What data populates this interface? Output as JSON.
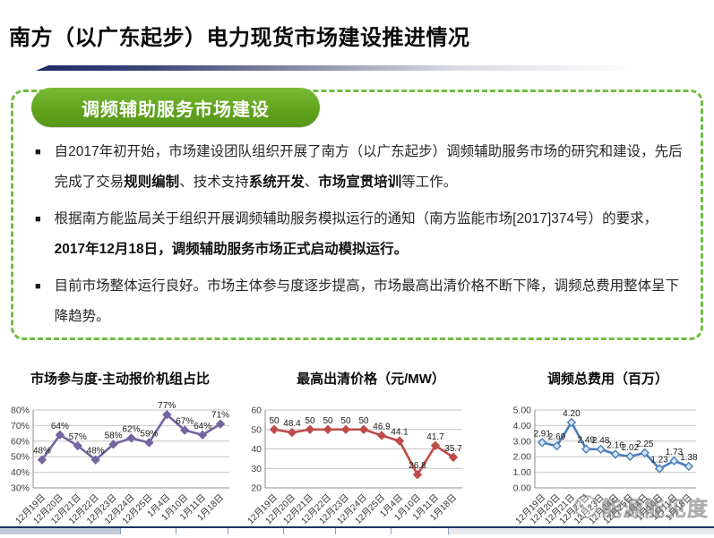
{
  "slide": {
    "title": "南方（以广东起步）电力现货市场建设推进情况",
    "section_header": "调频辅助服务市场建设",
    "accent_green": "#61a41d",
    "dashed_border_green": "#6fbf3f",
    "divider_navy": "#1e2a66",
    "bullets": [
      {
        "segments": [
          {
            "text": "自2017年初开始，市场建设团队组织开展了南方（以广东起步）调频辅助服务市场的研究和建设，先后完成了交易",
            "bold": false
          },
          {
            "text": "规则编制",
            "bold": true
          },
          {
            "text": "、技术支持",
            "bold": false
          },
          {
            "text": "系统开发",
            "bold": true
          },
          {
            "text": "、",
            "bold": false
          },
          {
            "text": "市场宣贯培训",
            "bold": true
          },
          {
            "text": "等工作。",
            "bold": false
          }
        ]
      },
      {
        "segments": [
          {
            "text": "根据南方能监局关于组织开展调频辅助服务模拟运行的通知（南方监能市场[2017]374号）的要求，",
            "bold": false
          },
          {
            "text": "2017年12月18日，调频辅助服务市场正式启动模拟运行。",
            "bold": true
          }
        ]
      },
      {
        "segments": [
          {
            "text": "目前市场整体运行良好。市场主体参与度逐步提高，市场最高出清价格不断下降，调频总费用整体呈下降趋势。",
            "bold": false
          }
        ]
      }
    ]
  },
  "watermark": {
    "text": "能源能见度"
  },
  "chart_data": [
    {
      "type": "line",
      "title": "市场参与度-主动报价机组占比",
      "categories": [
        "12月19日",
        "12月20日",
        "12月21日",
        "12月22日",
        "12月23日",
        "12月24日",
        "12月25日",
        "1月4日",
        "1月10日",
        "1月11日",
        "1月18日"
      ],
      "values": [
        48,
        64,
        57,
        48,
        58,
        62,
        59,
        77,
        67,
        64,
        71
      ],
      "point_labels": [
        "48%",
        "64%",
        "57%",
        "48%",
        "58%",
        "62%",
        "59%",
        "77%",
        "67%",
        "64%",
        "71%"
      ],
      "xlabel": "",
      "ylabel": "",
      "ylim": [
        30,
        80
      ],
      "yticks": [
        30,
        40,
        50,
        60,
        70,
        80
      ],
      "ytick_labels": [
        "30%",
        "40%",
        "50%",
        "60%",
        "70%",
        "80%"
      ],
      "grid": true,
      "legend": "none",
      "color": "#7464a0",
      "marker_fill": "#7464a0"
    },
    {
      "type": "line",
      "title": "最高出清价格（元/MW）",
      "categories": [
        "12月19日",
        "12月20日",
        "12月21日",
        "12月22日",
        "12月23日",
        "12月24日",
        "12月25日",
        "1月4日",
        "1月10日",
        "1月11日",
        "1月18日"
      ],
      "values": [
        50,
        48.4,
        50,
        50,
        50,
        50,
        46.9,
        44.1,
        26.8,
        41.7,
        35.7
      ],
      "point_labels": [
        "50",
        "48.4",
        "50",
        "50",
        "50",
        "50",
        "46.9",
        "44.1",
        "26.8",
        "41.7",
        "35.7"
      ],
      "xlabel": "",
      "ylabel": "",
      "ylim": [
        20,
        60
      ],
      "yticks": [
        20,
        30,
        40,
        50,
        60
      ],
      "ytick_labels": [
        "20",
        "30",
        "40",
        "50",
        "60"
      ],
      "grid": true,
      "legend": "none",
      "color": "#be4b48",
      "marker_fill": "#be4b48"
    },
    {
      "type": "line",
      "title": "调频总费用（百万）",
      "categories": [
        "12月19日",
        "12月20日",
        "12月21日",
        "12月22日",
        "12月23日",
        "12月24日",
        "12月25日",
        "1月4日",
        "1月10日",
        "1月11日",
        "1月18日"
      ],
      "values": [
        2.91,
        2.69,
        4.2,
        2.49,
        2.48,
        2.16,
        2.02,
        2.25,
        1.23,
        1.73,
        1.38
      ],
      "point_labels": [
        "2.91",
        "2.69",
        "4.20",
        "2.49",
        "2.48",
        "2.16",
        "2.02",
        "2.25",
        "1.23",
        "1.73",
        "1.38"
      ],
      "xlabel": "",
      "ylabel": "",
      "ylim": [
        0,
        5
      ],
      "yticks": [
        0,
        1,
        2,
        3,
        4,
        5
      ],
      "ytick_labels": [
        "0.00",
        "1.00",
        "2.00",
        "3.00",
        "4.00",
        "5.00"
      ],
      "grid": true,
      "legend": "none",
      "color": "#4a7ebb",
      "marker_fill": "#d6e4f2"
    }
  ]
}
